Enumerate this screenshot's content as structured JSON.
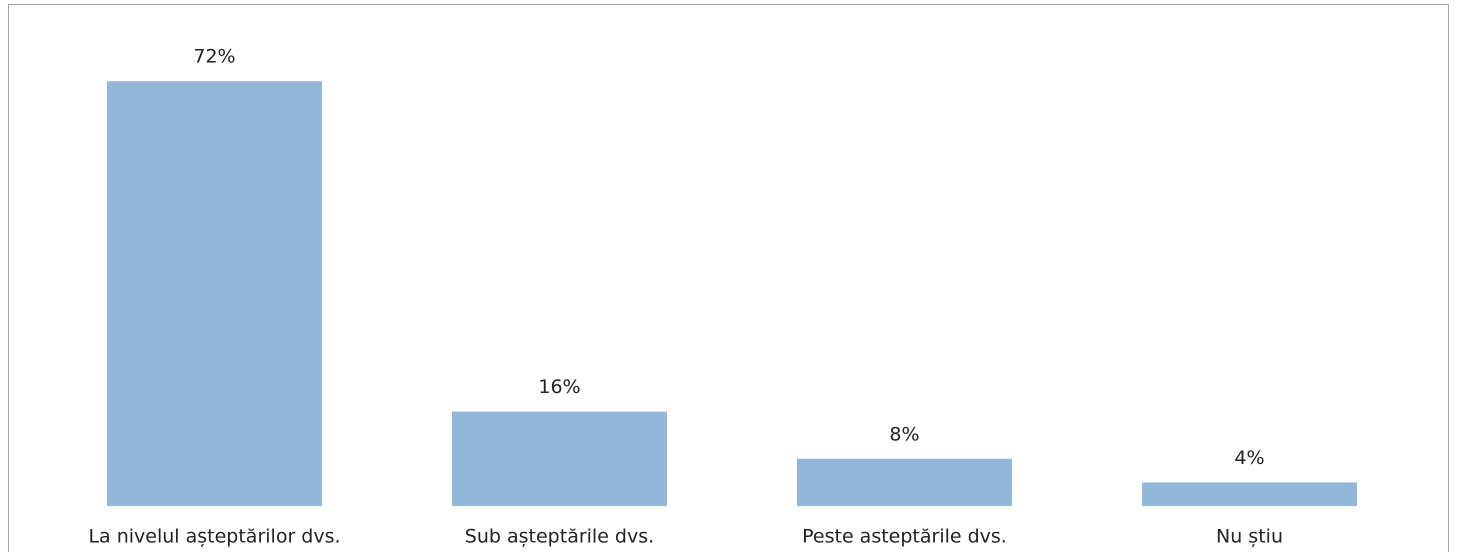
{
  "chart_data": {
    "type": "bar",
    "categories": [
      "La nivelul așteptărilor dvs.",
      "Sub așteptările dvs.",
      "Peste asteptările dvs.",
      "Nu știu"
    ],
    "values": [
      72,
      16,
      8,
      4
    ],
    "value_labels": [
      "72%",
      "16%",
      "8%",
      "4%"
    ],
    "color": "#93b7d9"
  }
}
